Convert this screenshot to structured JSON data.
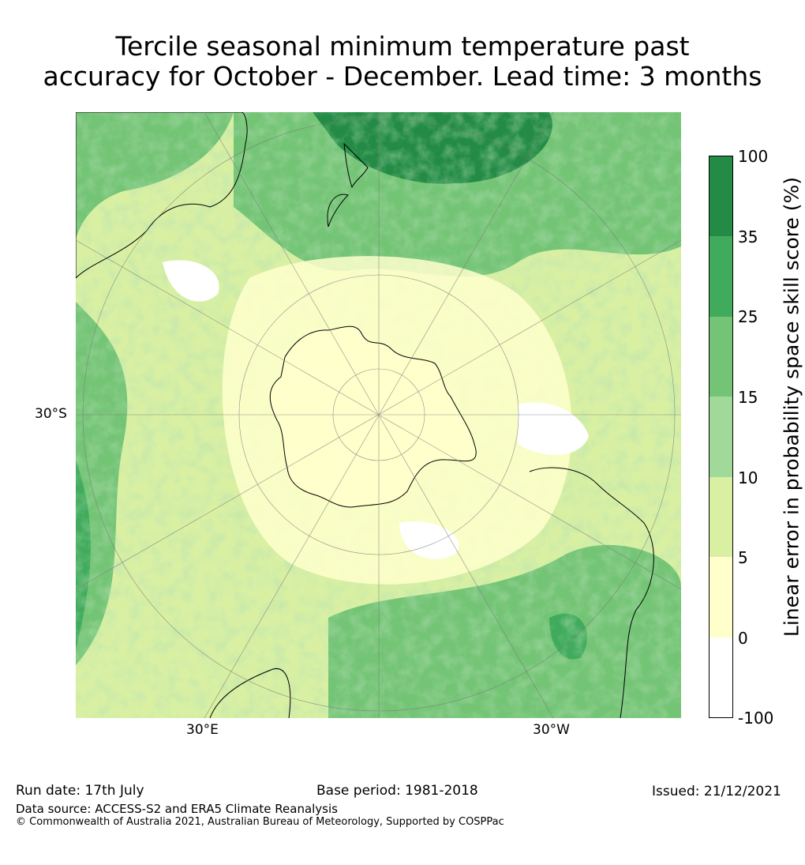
{
  "title": {
    "line1": "Tercile seasonal minimum temperature past",
    "line2": "accuracy for October - December. Lead time: 3 months"
  },
  "map": {
    "projection": "south-polar-stereographic",
    "lat_label": "30°S",
    "lon_labels": [
      "30°E",
      "30°W"
    ]
  },
  "colorbar": {
    "label": "Linear error in probability space skill score (%)",
    "ticks": [
      "100",
      "35",
      "25",
      "15",
      "10",
      "5",
      "0",
      "-100"
    ],
    "bins": [
      {
        "range": "35 to 100",
        "color": "#238b45"
      },
      {
        "range": "25 to 35",
        "color": "#41ab5d"
      },
      {
        "range": "15 to 25",
        "color": "#74c476"
      },
      {
        "range": "10 to 15",
        "color": "#a1d99b"
      },
      {
        "range": "5 to 10",
        "color": "#d9f0a3"
      },
      {
        "range": "0 to 5",
        "color": "#ffffcc"
      },
      {
        "range": "-100 to 0",
        "color": "#ffffff"
      }
    ]
  },
  "footer": {
    "run_date": "Run date: 17th July",
    "base_period": "Base period: 1981-2018",
    "issued": "Issued: 21/12/2021",
    "data_source": "Data source: ACCESS-S2 and ERA5 Climate Reanalysis",
    "copyright": "© Commonwealth of Australia 2021, Australian Bureau of Meteorology, Supported by COSPPac"
  }
}
